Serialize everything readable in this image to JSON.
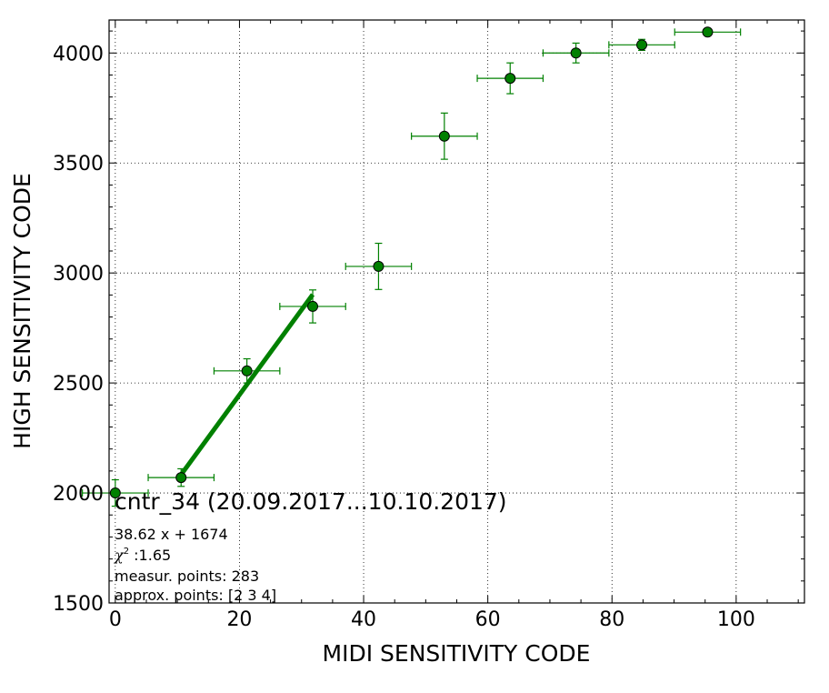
{
  "chart_data": {
    "type": "scatter",
    "xlabel": "MIDI SENSITIVITY CODE",
    "ylabel": "HIGH SENSITIVITY CODE",
    "xlim": [
      -1,
      111
    ],
    "ylim": [
      1500,
      4150
    ],
    "xticks": [
      0,
      20,
      40,
      60,
      80,
      100
    ],
    "yticks": [
      1500,
      2000,
      2500,
      3000,
      3500,
      4000
    ],
    "grid": true,
    "colors": {
      "points": "#008000",
      "fit_line": "#008000",
      "marker_edge": "#000000"
    },
    "points": [
      {
        "x": 0,
        "y": 2000,
        "xerr": 5.3,
        "yerr": 60
      },
      {
        "x": 10.6,
        "y": 2070,
        "xerr": 5.3,
        "yerr": 40
      },
      {
        "x": 21.2,
        "y": 2555,
        "xerr": 5.3,
        "yerr": 55
      },
      {
        "x": 31.8,
        "y": 2848,
        "xerr": 5.3,
        "yerr": 75
      },
      {
        "x": 42.4,
        "y": 3030,
        "xerr": 5.3,
        "yerr": 105
      },
      {
        "x": 53.0,
        "y": 3622,
        "xerr": 5.3,
        "yerr": 105
      },
      {
        "x": 63.6,
        "y": 3885,
        "xerr": 5.3,
        "yerr": 70
      },
      {
        "x": 74.2,
        "y": 4000,
        "xerr": 5.3,
        "yerr": 45
      },
      {
        "x": 84.8,
        "y": 4037,
        "xerr": 5.3,
        "yerr": 25
      },
      {
        "x": 95.4,
        "y": 4095,
        "xerr": 5.3,
        "yerr": 10
      }
    ],
    "fit": {
      "slope": 38.62,
      "intercept": 1674,
      "x_range": [
        10.6,
        31.8
      ]
    },
    "annotation": {
      "title": "cntr_34 (20.09.2017...10.10.2017)",
      "equation": "38.62 x + 1674",
      "chi2_symbol": "χ",
      "chi2_exp": "2",
      "chi2_value": " :1.65",
      "measur_points": "measur. points: 283",
      "approx_points": "approx. points: [2 3 4]"
    }
  }
}
